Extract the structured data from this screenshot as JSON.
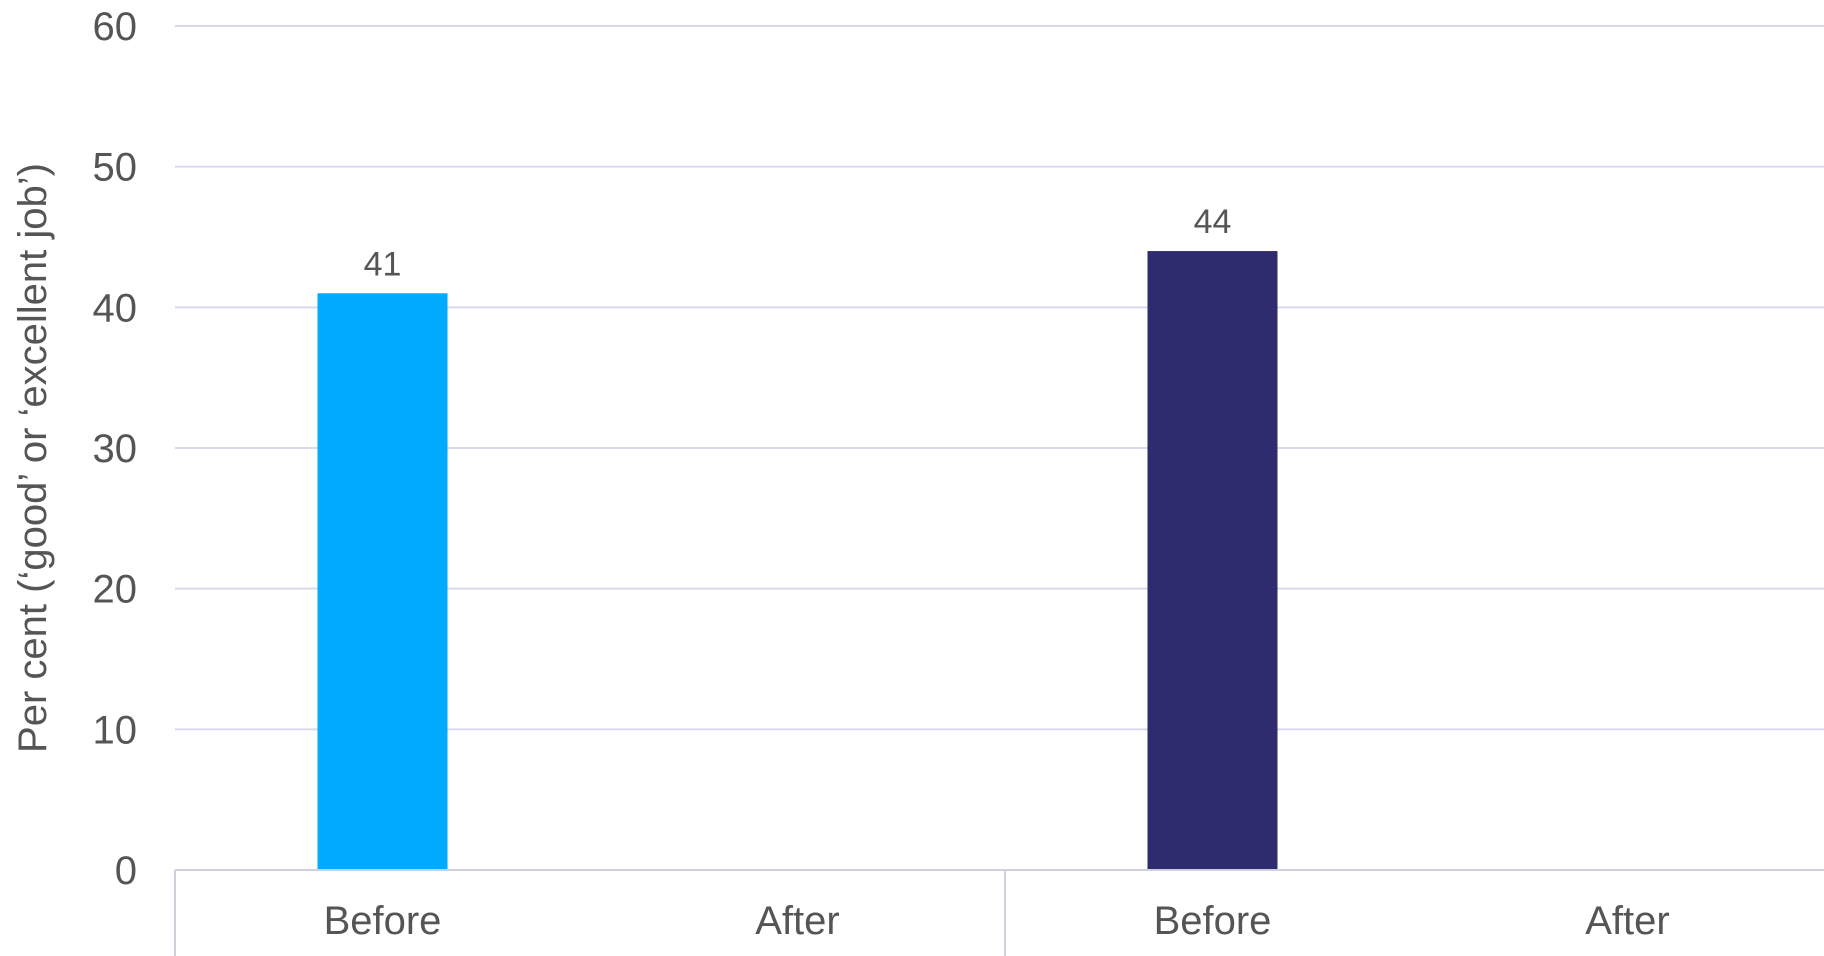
{
  "chart_data": {
    "type": "bar",
    "categories": [
      "Before",
      "After",
      "Before",
      "After"
    ],
    "values": [
      41,
      null,
      44,
      null
    ],
    "data_labels": [
      "41",
      "",
      "44",
      ""
    ],
    "bar_colors": [
      "#00aaff",
      "#00aaff",
      "#2e2b6e",
      "#2e2b6e"
    ],
    "ylabel": "Per cent (‘good’ or ‘excellent job’)",
    "ylim": [
      0,
      60
    ],
    "yticks": [
      0,
      10,
      20,
      30,
      40,
      50,
      60
    ],
    "grid": true,
    "colors": {
      "grid": "#d9d9ec",
      "axis": "#d0d0dc",
      "text": "#555555"
    }
  }
}
